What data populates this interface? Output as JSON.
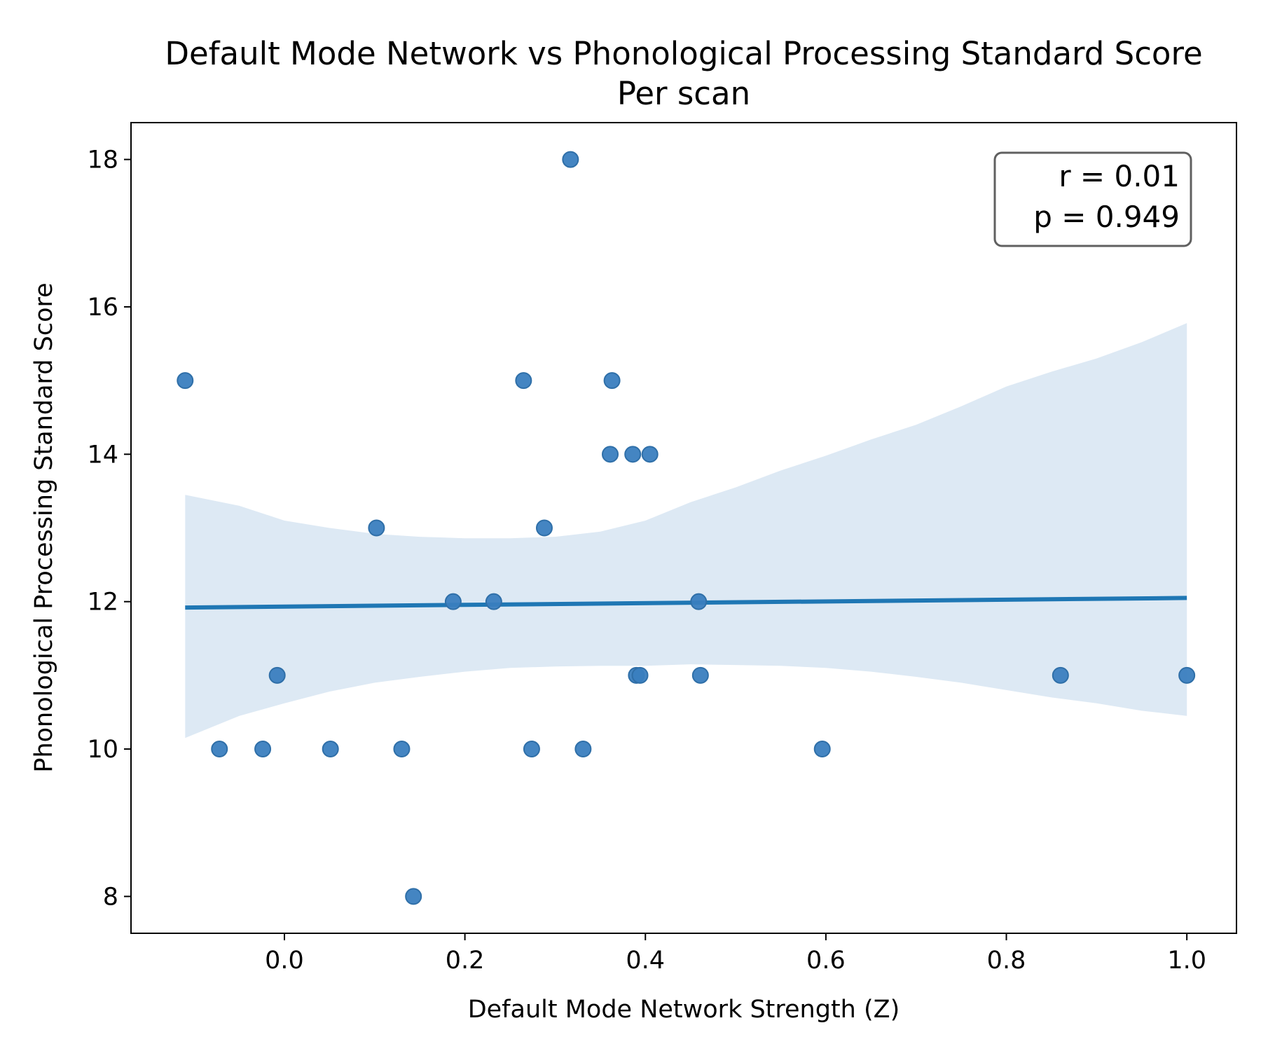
{
  "chart_data": {
    "type": "scatter",
    "title": "Default Mode Network vs Phonological Processing Standard Score",
    "subtitle": "Per scan",
    "xlabel": "Default Mode Network Strength (Z)",
    "ylabel": "Phonological Processing Standard Score",
    "xlim": [
      -0.17,
      1.055
    ],
    "ylim": [
      7.5,
      18.5
    ],
    "x_ticks": [
      0.0,
      0.2,
      0.4,
      0.6,
      0.8,
      1.0
    ],
    "x_tick_labels": [
      "0.0",
      "0.2",
      "0.4",
      "0.6",
      "0.8",
      "1.0"
    ],
    "y_ticks": [
      8,
      10,
      12,
      14,
      16,
      18
    ],
    "y_tick_labels": [
      "8",
      "10",
      "12",
      "14",
      "16",
      "18"
    ],
    "grid": false,
    "colors": {
      "points": "#3a7ebf",
      "line": "#1f77b4",
      "band": "#dde9f4"
    },
    "points": [
      {
        "x": -0.11,
        "y": 15
      },
      {
        "x": -0.072,
        "y": 10
      },
      {
        "x": -0.024,
        "y": 10
      },
      {
        "x": -0.008,
        "y": 11
      },
      {
        "x": 0.051,
        "y": 10
      },
      {
        "x": 0.102,
        "y": 13
      },
      {
        "x": 0.13,
        "y": 10
      },
      {
        "x": 0.143,
        "y": 8
      },
      {
        "x": 0.187,
        "y": 12
      },
      {
        "x": 0.232,
        "y": 12
      },
      {
        "x": 0.265,
        "y": 15
      },
      {
        "x": 0.274,
        "y": 10
      },
      {
        "x": 0.288,
        "y": 13
      },
      {
        "x": 0.317,
        "y": 18
      },
      {
        "x": 0.331,
        "y": 10
      },
      {
        "x": 0.361,
        "y": 14
      },
      {
        "x": 0.363,
        "y": 15
      },
      {
        "x": 0.386,
        "y": 14
      },
      {
        "x": 0.39,
        "y": 11
      },
      {
        "x": 0.394,
        "y": 11
      },
      {
        "x": 0.405,
        "y": 14
      },
      {
        "x": 0.459,
        "y": 12
      },
      {
        "x": 0.461,
        "y": 11
      },
      {
        "x": 0.596,
        "y": 10
      },
      {
        "x": 0.86,
        "y": 11
      },
      {
        "x": 1.0,
        "y": 11
      }
    ],
    "regression": {
      "x": [
        -0.11,
        1.0
      ],
      "y": [
        11.92,
        12.05
      ]
    },
    "confidence_band": {
      "x": [
        -0.11,
        -0.05,
        0.0,
        0.05,
        0.1,
        0.15,
        0.2,
        0.25,
        0.3,
        0.35,
        0.4,
        0.45,
        0.5,
        0.55,
        0.6,
        0.65,
        0.7,
        0.75,
        0.8,
        0.85,
        0.9,
        0.95,
        1.0
      ],
      "upper": [
        13.45,
        13.3,
        13.1,
        13.0,
        12.92,
        12.88,
        12.86,
        12.86,
        12.88,
        12.95,
        13.1,
        13.35,
        13.55,
        13.78,
        13.98,
        14.2,
        14.4,
        14.65,
        14.92,
        15.12,
        15.3,
        15.52,
        15.78
      ],
      "lower": [
        10.15,
        10.45,
        10.62,
        10.78,
        10.9,
        10.98,
        11.05,
        11.1,
        11.12,
        11.13,
        11.13,
        11.15,
        11.14,
        11.13,
        11.1,
        11.05,
        10.98,
        10.9,
        10.8,
        10.7,
        10.62,
        10.52,
        10.45
      ]
    },
    "annotation": {
      "lines": [
        "r = 0.01",
        "p = 0.949"
      ],
      "placement": "top-right"
    }
  }
}
